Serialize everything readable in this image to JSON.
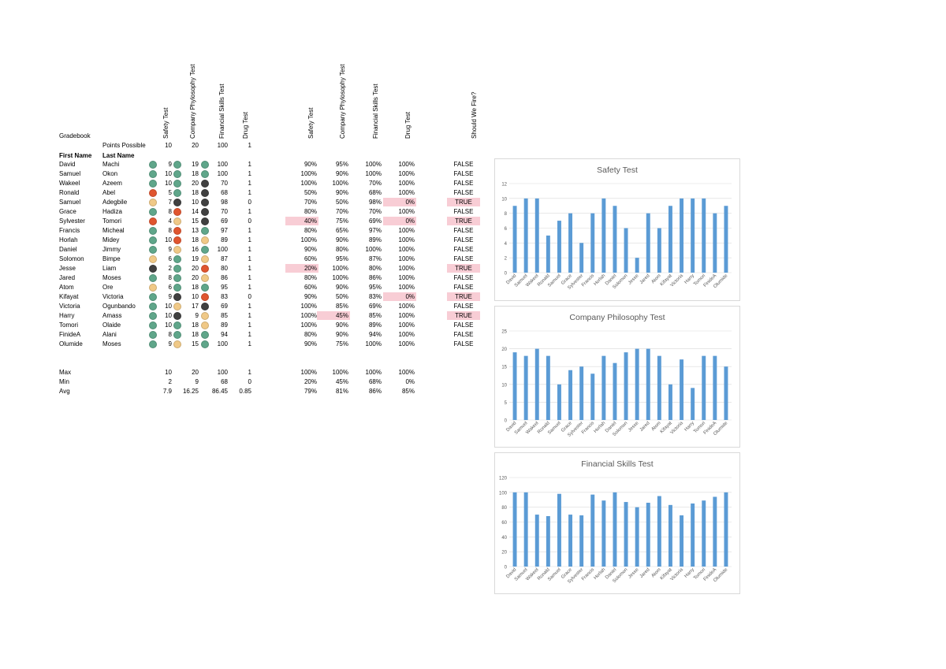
{
  "sheet": {
    "title": "Gradebook",
    "points_possible_label": "Points Possible",
    "first_name_header": "First Name",
    "last_name_header": "Last Name",
    "score_headers": [
      "Safety Test",
      "Company Phylosophy Test",
      "Financial Skills Test",
      "Drug Test"
    ],
    "pct_headers": [
      "Safety Test",
      "Company Phylosophy Test",
      "Financial Skills Test",
      "Drug Test"
    ],
    "fire_header": "Should We Fire?",
    "points_possible": [
      "10",
      "20",
      "100",
      "1"
    ],
    "colors": {
      "green": "#5fa68a",
      "orange": "#e0552f",
      "tan": "#f0c987",
      "dark": "#404040",
      "highlight": "#f8cdd5",
      "bar": "#5b9bd5"
    },
    "students": [
      {
        "first": "David",
        "last": "Machi",
        "scores": [
          "9",
          "19",
          "100",
          "1"
        ],
        "icons": [
          "green",
          "green",
          "green"
        ],
        "pcts": [
          "90%",
          "95%",
          "100%",
          "100%"
        ],
        "fire": "FALSE"
      },
      {
        "first": "Samuel",
        "last": "Okon",
        "scores": [
          "10",
          "18",
          "100",
          "1"
        ],
        "icons": [
          "green",
          "green",
          "green"
        ],
        "pcts": [
          "100%",
          "90%",
          "100%",
          "100%"
        ],
        "fire": "FALSE"
      },
      {
        "first": "Wakeel",
        "last": "Azeem",
        "scores": [
          "10",
          "20",
          "70",
          "1"
        ],
        "icons": [
          "green",
          "green",
          "dark"
        ],
        "pcts": [
          "100%",
          "100%",
          "70%",
          "100%"
        ],
        "fire": "FALSE"
      },
      {
        "first": "Ronald",
        "last": "Abel",
        "scores": [
          "5",
          "18",
          "68",
          "1"
        ],
        "icons": [
          "orange",
          "green",
          "dark"
        ],
        "pcts": [
          "50%",
          "90%",
          "68%",
          "100%"
        ],
        "fire": "FALSE"
      },
      {
        "first": "Samuel",
        "last": "Adegbile",
        "scores": [
          "7",
          "10",
          "98",
          "0"
        ],
        "icons": [
          "tan",
          "dark",
          "dark"
        ],
        "pcts": [
          "70%",
          "50%",
          "98%",
          "0%"
        ],
        "fire": "TRUE"
      },
      {
        "first": "Grace",
        "last": "Hadiza",
        "scores": [
          "8",
          "14",
          "70",
          "1"
        ],
        "icons": [
          "green",
          "orange",
          "dark"
        ],
        "pcts": [
          "80%",
          "70%",
          "70%",
          "100%"
        ],
        "fire": "FALSE"
      },
      {
        "first": "Sylvester",
        "last": "Tomori",
        "scores": [
          "4",
          "15",
          "69",
          "0"
        ],
        "icons": [
          "orange",
          "tan",
          "dark"
        ],
        "pcts": [
          "40%",
          "75%",
          "69%",
          "0%"
        ],
        "fire": "TRUE"
      },
      {
        "first": "Francis",
        "last": "Micheal",
        "scores": [
          "8",
          "13",
          "97",
          "1"
        ],
        "icons": [
          "green",
          "orange",
          "green"
        ],
        "pcts": [
          "80%",
          "65%",
          "97%",
          "100%"
        ],
        "fire": "FALSE"
      },
      {
        "first": "Horlah",
        "last": "Midey",
        "scores": [
          "10",
          "18",
          "89",
          "1"
        ],
        "icons": [
          "green",
          "orange",
          "tan"
        ],
        "pcts": [
          "100%",
          "90%",
          "89%",
          "100%"
        ],
        "fire": "FALSE"
      },
      {
        "first": "Daniel",
        "last": "Jimmy",
        "scores": [
          "9",
          "16",
          "100",
          "1"
        ],
        "icons": [
          "green",
          "tan",
          "green"
        ],
        "pcts": [
          "90%",
          "80%",
          "100%",
          "100%"
        ],
        "fire": "FALSE"
      },
      {
        "first": "Solomon",
        "last": "Bimpe",
        "scores": [
          "6",
          "19",
          "87",
          "1"
        ],
        "icons": [
          "tan",
          "green",
          "tan"
        ],
        "pcts": [
          "60%",
          "95%",
          "87%",
          "100%"
        ],
        "fire": "FALSE"
      },
      {
        "first": "Jesse",
        "last": "Liam",
        "scores": [
          "2",
          "20",
          "80",
          "1"
        ],
        "icons": [
          "dark",
          "green",
          "orange"
        ],
        "pcts": [
          "20%",
          "100%",
          "80%",
          "100%"
        ],
        "fire": "TRUE"
      },
      {
        "first": "Jared",
        "last": "Moses",
        "scores": [
          "8",
          "20",
          "86",
          "1"
        ],
        "icons": [
          "green",
          "green",
          "tan"
        ],
        "pcts": [
          "80%",
          "100%",
          "86%",
          "100%"
        ],
        "fire": "FALSE"
      },
      {
        "first": "Atom",
        "last": "Ore",
        "scores": [
          "6",
          "18",
          "95",
          "1"
        ],
        "icons": [
          "tan",
          "green",
          "green"
        ],
        "pcts": [
          "60%",
          "90%",
          "95%",
          "100%"
        ],
        "fire": "FALSE"
      },
      {
        "first": "Kifayat",
        "last": "Victoria",
        "scores": [
          "9",
          "10",
          "83",
          "0"
        ],
        "icons": [
          "green",
          "dark",
          "orange"
        ],
        "pcts": [
          "90%",
          "50%",
          "83%",
          "0%"
        ],
        "fire": "TRUE"
      },
      {
        "first": "Victoria",
        "last": "Ogunbando",
        "scores": [
          "10",
          "17",
          "69",
          "1"
        ],
        "icons": [
          "green",
          "tan",
          "dark"
        ],
        "pcts": [
          "100%",
          "85%",
          "69%",
          "100%"
        ],
        "fire": "FALSE"
      },
      {
        "first": "Harry",
        "last": "Amass",
        "scores": [
          "10",
          "9",
          "85",
          "1"
        ],
        "icons": [
          "green",
          "dark",
          "tan"
        ],
        "pcts": [
          "100%",
          "45%",
          "85%",
          "100%"
        ],
        "fire": "TRUE"
      },
      {
        "first": "Tomori",
        "last": "Olaide",
        "scores": [
          "10",
          "18",
          "89",
          "1"
        ],
        "icons": [
          "green",
          "green",
          "tan"
        ],
        "pcts": [
          "100%",
          "90%",
          "89%",
          "100%"
        ],
        "fire": "FALSE"
      },
      {
        "first": "FinideA",
        "last": "Alani",
        "scores": [
          "8",
          "18",
          "94",
          "1"
        ],
        "icons": [
          "green",
          "green",
          "green"
        ],
        "pcts": [
          "80%",
          "90%",
          "94%",
          "100%"
        ],
        "fire": "FALSE"
      },
      {
        "first": "Olumide",
        "last": "Moses",
        "scores": [
          "9",
          "15",
          "100",
          "1"
        ],
        "icons": [
          "green",
          "tan",
          "green"
        ],
        "pcts": [
          "90%",
          "75%",
          "100%",
          "100%"
        ],
        "fire": "FALSE"
      }
    ],
    "stats": [
      {
        "label": "Max",
        "scores": [
          "10",
          "20",
          "100",
          "1"
        ],
        "pcts": [
          "100%",
          "100%",
          "100%",
          "100%"
        ]
      },
      {
        "label": "Min",
        "scores": [
          "2",
          "9",
          "68",
          "0"
        ],
        "pcts": [
          "20%",
          "45%",
          "68%",
          "0%"
        ]
      },
      {
        "label": "Avg",
        "scores": [
          "7.9",
          "16.25",
          "86.45",
          "0.85"
        ],
        "pcts": [
          "79%",
          "81%",
          "86%",
          "85%"
        ]
      }
    ]
  },
  "chart_data": [
    {
      "type": "bar",
      "title": "Safety Test",
      "categories": [
        "David",
        "Samuel",
        "Wakeel",
        "Ronald",
        "Samuel",
        "Grace",
        "Sylvester",
        "Francis",
        "Horlah",
        "Daniel",
        "Solomon",
        "Jesse",
        "Jared",
        "Atom",
        "Kifayat",
        "Victoria",
        "Harry",
        "Tomori",
        "FinideA",
        "Olumide"
      ],
      "values": [
        9,
        10,
        10,
        5,
        7,
        8,
        4,
        8,
        10,
        9,
        6,
        2,
        8,
        6,
        9,
        10,
        10,
        10,
        8,
        9
      ],
      "ylim": [
        0,
        12
      ],
      "yticks": [
        0,
        2,
        4,
        6,
        8,
        10,
        12
      ],
      "grid": true
    },
    {
      "type": "bar",
      "title": "Company Philosophy Test",
      "categories": [
        "David",
        "Samuel",
        "Wakeel",
        "Ronald",
        "Samuel",
        "Grace",
        "Sylvester",
        "Francis",
        "Horlah",
        "Daniel",
        "Solomon",
        "Jesse",
        "Jared",
        "Atom",
        "Kifayat",
        "Victoria",
        "Harry",
        "Tomori",
        "FinideA",
        "Olumide"
      ],
      "values": [
        19,
        18,
        20,
        18,
        10,
        14,
        15,
        13,
        18,
        16,
        19,
        20,
        20,
        18,
        10,
        17,
        9,
        18,
        18,
        15
      ],
      "ylim": [
        0,
        25
      ],
      "yticks": [
        0,
        5,
        10,
        15,
        20,
        25
      ],
      "grid": true
    },
    {
      "type": "bar",
      "title": "Financial Skills Test",
      "categories": [
        "David",
        "Samuel",
        "Wakeel",
        "Ronald",
        "Samuel",
        "Grace",
        "Sylvester",
        "Francis",
        "Horlah",
        "Daniel",
        "Solomon",
        "Jesse",
        "Jared",
        "Atom",
        "Kifayat",
        "Victoria",
        "Harry",
        "Tomori",
        "FinideA",
        "Olumide"
      ],
      "values": [
        100,
        100,
        70,
        68,
        98,
        70,
        69,
        97,
        89,
        100,
        87,
        80,
        86,
        95,
        83,
        69,
        85,
        89,
        94,
        100
      ],
      "ylim": [
        0,
        120
      ],
      "yticks": [
        0,
        20,
        40,
        60,
        80,
        100,
        120
      ],
      "grid": true
    }
  ]
}
